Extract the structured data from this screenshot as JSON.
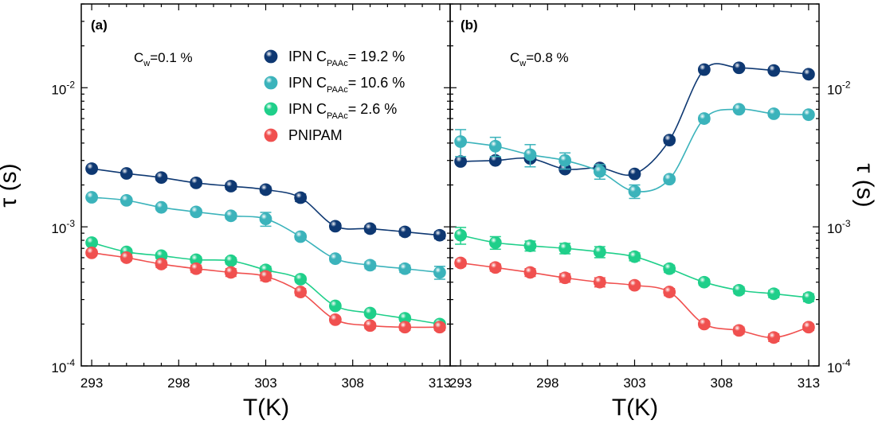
{
  "chart_data": [
    {
      "type": "scatter",
      "panel": "(a)",
      "annotation": {
        "base": "C",
        "sub": "w",
        "rest": "=0.1 %"
      },
      "xlabel": "T(K)",
      "ylabel": "τ (s)",
      "xlim": [
        292.4,
        313.6
      ],
      "ylim": [
        0.0001,
        0.04
      ],
      "yscale": "log",
      "grid": false,
      "legend_position": "top-right",
      "xticks": [
        "293",
        "298",
        "303",
        "308",
        "313"
      ],
      "yticks": [
        {
          "value": 0.0001,
          "base": "10",
          "exp": "-4"
        },
        {
          "value": 0.001,
          "base": "10",
          "exp": "-3"
        },
        {
          "value": 0.01,
          "base": "10",
          "exp": "-2"
        }
      ],
      "series": [
        {
          "name": "IPN C_PAAc = 19.2 %",
          "color": "#0e3872",
          "x": [
            293,
            295,
            297,
            299,
            301,
            303,
            305,
            307,
            309,
            311,
            313
          ],
          "y": [
            0.00262,
            0.00242,
            0.00226,
            0.00207,
            0.00196,
            0.00185,
            0.00162,
            0.00101,
            0.00097,
            0.00092,
            0.00087
          ],
          "err": [
            0.0001,
            0.0001,
            0.0001,
            0.0001,
            0.0001,
            0.0001,
            0.0001,
            5e-05,
            5e-05,
            5e-05,
            5e-05
          ]
        },
        {
          "name": "IPN C_PAAc = 10.6 %",
          "color": "#3bb3bb",
          "x": [
            293,
            295,
            297,
            299,
            301,
            303,
            305,
            307,
            309,
            311,
            313
          ],
          "y": [
            0.00163,
            0.00155,
            0.00138,
            0.00128,
            0.0012,
            0.00114,
            0.00085,
            0.00059,
            0.00053,
            0.0005,
            0.00047
          ],
          "err": [
            6e-05,
            6e-05,
            6e-05,
            6e-05,
            6e-05,
            0.00013,
            4e-05,
            3e-05,
            3e-05,
            3e-05,
            5e-05
          ]
        },
        {
          "name": "IPN C_PAAc = 2.6 %",
          "color": "#1fcf8a",
          "x": [
            293,
            295,
            297,
            299,
            301,
            303,
            305,
            307,
            309,
            311,
            313
          ],
          "y": [
            0.00077,
            0.00066,
            0.00062,
            0.00058,
            0.00057,
            0.00049,
            0.00042,
            0.00027,
            0.00024,
            0.00022,
            0.0002
          ],
          "err": [
            3e-05,
            3e-05,
            3e-05,
            3e-05,
            3e-05,
            3e-05,
            2e-05,
            1e-05,
            1e-05,
            1e-05,
            1e-05
          ]
        },
        {
          "name": "PNIPAM",
          "color": "#f0504f",
          "x": [
            293,
            295,
            297,
            299,
            301,
            303,
            305,
            307,
            309,
            311,
            313
          ],
          "y": [
            0.00065,
            0.0006,
            0.00054,
            0.0005,
            0.00047,
            0.00044,
            0.00034,
            0.000215,
            0.000195,
            0.00019,
            0.00019
          ],
          "err": [
            3e-05,
            3e-05,
            3e-05,
            3e-05,
            3e-05,
            3e-05,
            2e-05,
            1e-05,
            1e-05,
            1e-05,
            1e-05
          ]
        }
      ]
    },
    {
      "type": "scatter",
      "panel": "(b)",
      "annotation": {
        "base": "C",
        "sub": "w",
        "rest": "=0.8 %"
      },
      "xlabel": "T(K)",
      "ylabel": "τ (s)",
      "xlim": [
        292.4,
        313.6
      ],
      "ylim": [
        0.0001,
        0.04
      ],
      "yscale": "log",
      "grid": false,
      "xticks": [
        "293",
        "298",
        "303",
        "308",
        "313"
      ],
      "yticks": [
        {
          "value": 0.0001,
          "base": "10",
          "exp": "-4"
        },
        {
          "value": 0.001,
          "base": "10",
          "exp": "-3"
        },
        {
          "value": 0.01,
          "base": "10",
          "exp": "-2"
        }
      ],
      "series": [
        {
          "name": "IPN C_PAAc = 19.2 %",
          "color": "#0e3872",
          "x": [
            293,
            295,
            297,
            299,
            301,
            303,
            305,
            307,
            309,
            311,
            313
          ],
          "y": [
            0.00295,
            0.003,
            0.0031,
            0.0026,
            0.00265,
            0.0024,
            0.0042,
            0.0135,
            0.0139,
            0.0133,
            0.0125
          ],
          "err": [
            0.0001,
            0.0001,
            0.0001,
            0.0001,
            0.0001,
            0.0001,
            0.0002,
            0.0005,
            0.0005,
            0.0005,
            0.0005
          ]
        },
        {
          "name": "IPN C_PAAc = 10.6 %",
          "color": "#3bb3bb",
          "x": [
            293,
            295,
            297,
            299,
            301,
            303,
            305,
            307,
            309,
            311,
            313
          ],
          "y": [
            0.0041,
            0.0038,
            0.0033,
            0.003,
            0.0025,
            0.0018,
            0.0022,
            0.006,
            0.007,
            0.0065,
            0.0064
          ],
          "err": [
            0.0009,
            0.0006,
            0.0006,
            0.0004,
            0.0003,
            0.0002,
            0.0001,
            0.0003,
            0.0003,
            0.0003,
            0.0003
          ]
        },
        {
          "name": "IPN C_PAAc = 2.6 %",
          "color": "#1fcf8a",
          "x": [
            293,
            295,
            297,
            299,
            301,
            303,
            305,
            307,
            309,
            311,
            313
          ],
          "y": [
            0.00087,
            0.00077,
            0.00073,
            0.0007,
            0.00066,
            0.00061,
            0.0005,
            0.0004,
            0.00035,
            0.00033,
            0.00031
          ],
          "err": [
            0.00012,
            8e-05,
            6e-05,
            6e-05,
            6e-05,
            4e-05,
            3e-05,
            2e-05,
            2e-05,
            2e-05,
            2e-05
          ]
        },
        {
          "name": "PNIPAM",
          "color": "#f0504f",
          "x": [
            293,
            295,
            297,
            299,
            301,
            303,
            305,
            307,
            309,
            311,
            313
          ],
          "y": [
            0.00055,
            0.00051,
            0.00047,
            0.00043,
            0.0004,
            0.00038,
            0.00034,
            0.0002,
            0.00018,
            0.00016,
            0.00019
          ],
          "err": [
            3e-05,
            3e-05,
            3e-05,
            3e-05,
            3e-05,
            2e-05,
            2e-05,
            1e-05,
            1e-05,
            1e-05,
            1e-05
          ]
        }
      ]
    }
  ],
  "legend": [
    {
      "prefix": "IPN C",
      "sub": "PAAc",
      "suffix": "= 19.2 %",
      "color": "#0e3872"
    },
    {
      "prefix": "IPN C",
      "sub": "PAAc",
      "suffix": "= 10.6 %",
      "color": "#3bb3bb"
    },
    {
      "prefix": "IPN C",
      "sub": "PAAc",
      "suffix": "= 2.6 %",
      "color": "#1fcf8a"
    },
    {
      "prefix": "PNIPAM",
      "sub": "",
      "suffix": "",
      "color": "#f0504f"
    }
  ]
}
